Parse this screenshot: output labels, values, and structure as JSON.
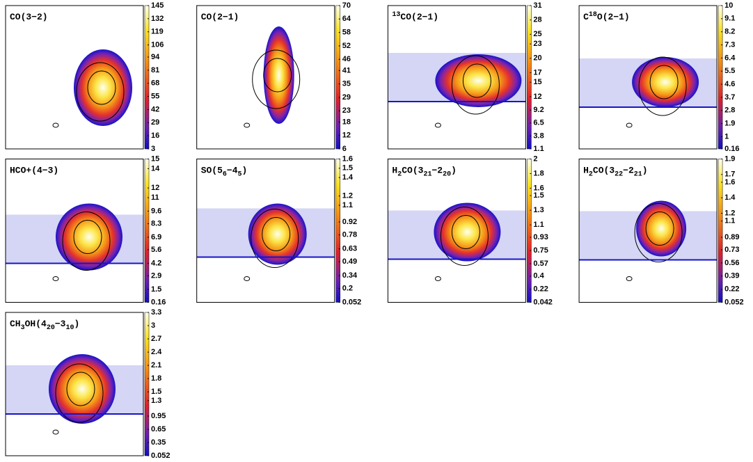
{
  "chart_data": [
    {
      "type": "heatmap",
      "title": [
        {
          "text": "CO(3−2)",
          "pos": "base"
        }
      ],
      "cticks": [
        3,
        16,
        29,
        42,
        55,
        68,
        81,
        94,
        106,
        119,
        132,
        145
      ]
    },
    {
      "type": "heatmap",
      "title": [
        {
          "text": "CO(2−1)",
          "pos": "base"
        }
      ],
      "cticks": [
        6,
        12,
        18,
        23,
        29,
        35,
        41,
        46,
        52,
        58,
        64,
        70
      ]
    },
    {
      "type": "heatmap",
      "title": [
        {
          "text": "13",
          "pos": "sup"
        },
        {
          "text": "CO(2−1)",
          "pos": "base"
        }
      ],
      "cticks": [
        1.1,
        3.8,
        6.5,
        9.2,
        12,
        15,
        17,
        20,
        23,
        25,
        28,
        31
      ]
    },
    {
      "type": "heatmap",
      "title": [
        {
          "text": "C",
          "pos": "base"
        },
        {
          "text": "18",
          "pos": "sup"
        },
        {
          "text": "O(2−1)",
          "pos": "base"
        }
      ],
      "cticks": [
        0.16,
        1,
        1.9,
        2.8,
        3.7,
        4.6,
        5.5,
        6.4,
        7.3,
        8.2,
        9.1,
        10
      ]
    },
    {
      "type": "heatmap",
      "title": [
        {
          "text": "HCO+(4−3)",
          "pos": "base"
        }
      ],
      "cticks": [
        0.16,
        1.5,
        2.9,
        4.2,
        5.6,
        6.9,
        8.3,
        9.6,
        11,
        12,
        14,
        15
      ]
    },
    {
      "type": "heatmap",
      "title": [
        {
          "text": "SO(5",
          "pos": "base"
        },
        {
          "text": "6",
          "pos": "sub"
        },
        {
          "text": "−4",
          "pos": "base"
        },
        {
          "text": "5",
          "pos": "sub"
        },
        {
          "text": ")",
          "pos": "base"
        }
      ],
      "cticks": [
        0.052,
        0.2,
        0.34,
        0.49,
        0.63,
        0.78,
        0.92,
        1.1,
        1.2,
        1.4,
        1.5,
        1.6
      ]
    },
    {
      "type": "heatmap",
      "title": [
        {
          "text": "H",
          "pos": "base"
        },
        {
          "text": "2",
          "pos": "sub"
        },
        {
          "text": "CO(3",
          "pos": "base"
        },
        {
          "text": "21",
          "pos": "sub"
        },
        {
          "text": "−2",
          "pos": "base"
        },
        {
          "text": "20",
          "pos": "sub"
        },
        {
          "text": ")",
          "pos": "base"
        }
      ],
      "cticks": [
        0.042,
        0.22,
        0.4,
        0.57,
        0.75,
        0.93,
        1.1,
        1.3,
        1.5,
        1.6,
        1.8,
        2
      ]
    },
    {
      "type": "heatmap",
      "title": [
        {
          "text": "H",
          "pos": "base"
        },
        {
          "text": "2",
          "pos": "sub"
        },
        {
          "text": "CO(3",
          "pos": "base"
        },
        {
          "text": "22",
          "pos": "sub"
        },
        {
          "text": "−2",
          "pos": "base"
        },
        {
          "text": "21",
          "pos": "sub"
        },
        {
          "text": ")",
          "pos": "base"
        }
      ],
      "cticks": [
        0.052,
        0.22,
        0.39,
        0.56,
        0.73,
        0.89,
        1.1,
        1.2,
        1.4,
        1.6,
        1.7,
        1.9
      ]
    },
    {
      "type": "heatmap",
      "title": [
        {
          "text": "CH",
          "pos": "base"
        },
        {
          "text": "3",
          "pos": "sub"
        },
        {
          "text": "OH(4",
          "pos": "base"
        },
        {
          "text": "20",
          "pos": "sub"
        },
        {
          "text": "−3",
          "pos": "base"
        },
        {
          "text": "10",
          "pos": "sub"
        },
        {
          "text": ")",
          "pos": "base"
        }
      ],
      "cticks": [
        0.052,
        0.35,
        0.65,
        0.95,
        1.3,
        1.5,
        1.8,
        2.1,
        2.4,
        2.7,
        3,
        3.3
      ]
    }
  ]
}
